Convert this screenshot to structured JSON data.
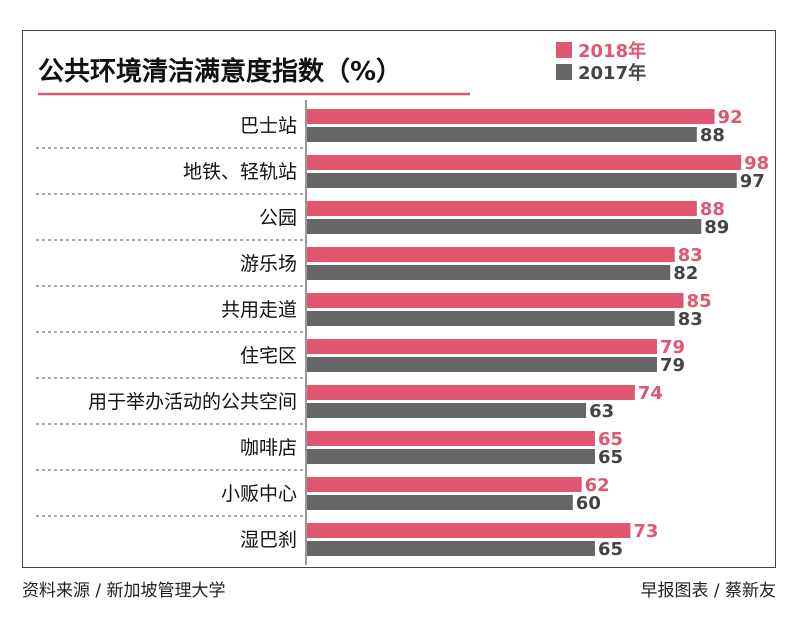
{
  "chart_data": {
    "type": "bar",
    "orientation": "horizontal",
    "title": "公共环境清洁满意度指数（%）",
    "categories": [
      "巴士站",
      "地铁、轻轨站",
      "公园",
      "游乐场",
      "共用走道",
      "住宅区",
      "用于举办活动的公共空间",
      "咖啡店",
      "小贩中心",
      "湿巴刹"
    ],
    "series": [
      {
        "name": "2018年",
        "color": "#e0566f",
        "values": [
          92,
          98,
          88,
          83,
          85,
          79,
          74,
          65,
          62,
          73
        ]
      },
      {
        "name": "2017年",
        "color": "#666666",
        "values": [
          88,
          97,
          89,
          82,
          83,
          79,
          63,
          65,
          60,
          65
        ]
      }
    ],
    "legend_position": "top-right",
    "axis_start": 0,
    "axis_max": 100,
    "grid": false,
    "value_labels": true
  },
  "footer": {
    "source": "资料来源 / 新加坡管理大学",
    "credit": "早报图表 / 蔡新友"
  }
}
